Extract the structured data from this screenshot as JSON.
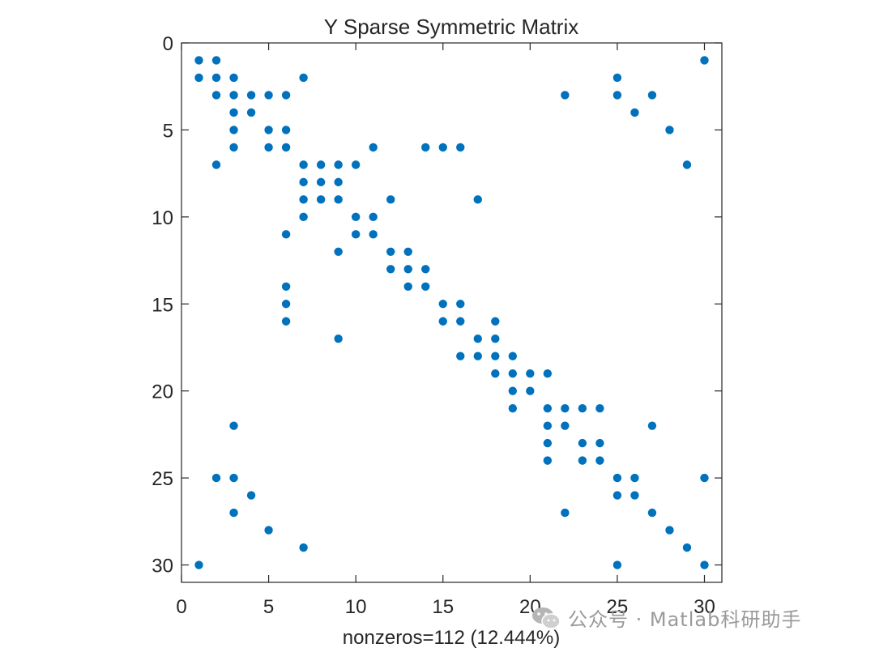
{
  "chart_data": {
    "type": "scatter",
    "title": "Y Sparse Symmetric Matrix",
    "xlabel": "nonzeros=112 (12.444%)",
    "ylabel": "",
    "xlim": [
      0,
      31
    ],
    "ylim": [
      0,
      31
    ],
    "y_reversed": true,
    "xticks": [
      0,
      5,
      10,
      15,
      20,
      25,
      30
    ],
    "yticks": [
      0,
      5,
      10,
      15,
      20,
      25,
      30
    ],
    "grid": false,
    "marker_color": "#0072BD",
    "points": [
      [
        1,
        1
      ],
      [
        2,
        1
      ],
      [
        30,
        1
      ],
      [
        1,
        2
      ],
      [
        2,
        2
      ],
      [
        3,
        2
      ],
      [
        7,
        2
      ],
      [
        25,
        2
      ],
      [
        2,
        3
      ],
      [
        3,
        3
      ],
      [
        4,
        3
      ],
      [
        5,
        3
      ],
      [
        6,
        3
      ],
      [
        22,
        3
      ],
      [
        25,
        3
      ],
      [
        27,
        3
      ],
      [
        3,
        4
      ],
      [
        4,
        4
      ],
      [
        26,
        4
      ],
      [
        3,
        5
      ],
      [
        5,
        5
      ],
      [
        6,
        5
      ],
      [
        28,
        5
      ],
      [
        3,
        6
      ],
      [
        5,
        6
      ],
      [
        6,
        6
      ],
      [
        11,
        6
      ],
      [
        14,
        6
      ],
      [
        15,
        6
      ],
      [
        16,
        6
      ],
      [
        2,
        7
      ],
      [
        7,
        7
      ],
      [
        8,
        7
      ],
      [
        9,
        7
      ],
      [
        10,
        7
      ],
      [
        29,
        7
      ],
      [
        7,
        8
      ],
      [
        8,
        8
      ],
      [
        9,
        8
      ],
      [
        7,
        9
      ],
      [
        8,
        9
      ],
      [
        9,
        9
      ],
      [
        12,
        9
      ],
      [
        17,
        9
      ],
      [
        7,
        10
      ],
      [
        10,
        10
      ],
      [
        11,
        10
      ],
      [
        6,
        11
      ],
      [
        10,
        11
      ],
      [
        11,
        11
      ],
      [
        9,
        12
      ],
      [
        12,
        12
      ],
      [
        13,
        12
      ],
      [
        12,
        13
      ],
      [
        13,
        13
      ],
      [
        14,
        13
      ],
      [
        6,
        14
      ],
      [
        13,
        14
      ],
      [
        14,
        14
      ],
      [
        6,
        15
      ],
      [
        15,
        15
      ],
      [
        16,
        15
      ],
      [
        6,
        16
      ],
      [
        15,
        16
      ],
      [
        16,
        16
      ],
      [
        18,
        16
      ],
      [
        9,
        17
      ],
      [
        17,
        17
      ],
      [
        18,
        17
      ],
      [
        16,
        18
      ],
      [
        17,
        18
      ],
      [
        18,
        18
      ],
      [
        19,
        18
      ],
      [
        18,
        19
      ],
      [
        19,
        19
      ],
      [
        20,
        19
      ],
      [
        21,
        19
      ],
      [
        19,
        20
      ],
      [
        20,
        20
      ],
      [
        19,
        21
      ],
      [
        21,
        21
      ],
      [
        22,
        21
      ],
      [
        23,
        21
      ],
      [
        24,
        21
      ],
      [
        3,
        22
      ],
      [
        21,
        22
      ],
      [
        22,
        22
      ],
      [
        27,
        22
      ],
      [
        21,
        23
      ],
      [
        23,
        23
      ],
      [
        24,
        23
      ],
      [
        21,
        24
      ],
      [
        23,
        24
      ],
      [
        24,
        24
      ],
      [
        2,
        25
      ],
      [
        3,
        25
      ],
      [
        25,
        25
      ],
      [
        26,
        25
      ],
      [
        30,
        25
      ],
      [
        4,
        26
      ],
      [
        25,
        26
      ],
      [
        26,
        26
      ],
      [
        3,
        27
      ],
      [
        22,
        27
      ],
      [
        27,
        27
      ],
      [
        5,
        28
      ],
      [
        28,
        28
      ],
      [
        7,
        29
      ],
      [
        29,
        29
      ],
      [
        1,
        30
      ],
      [
        25,
        30
      ],
      [
        30,
        30
      ]
    ]
  },
  "watermark": {
    "text": "公众号 · Matlab科研助手",
    "icon": "wechat-icon"
  }
}
